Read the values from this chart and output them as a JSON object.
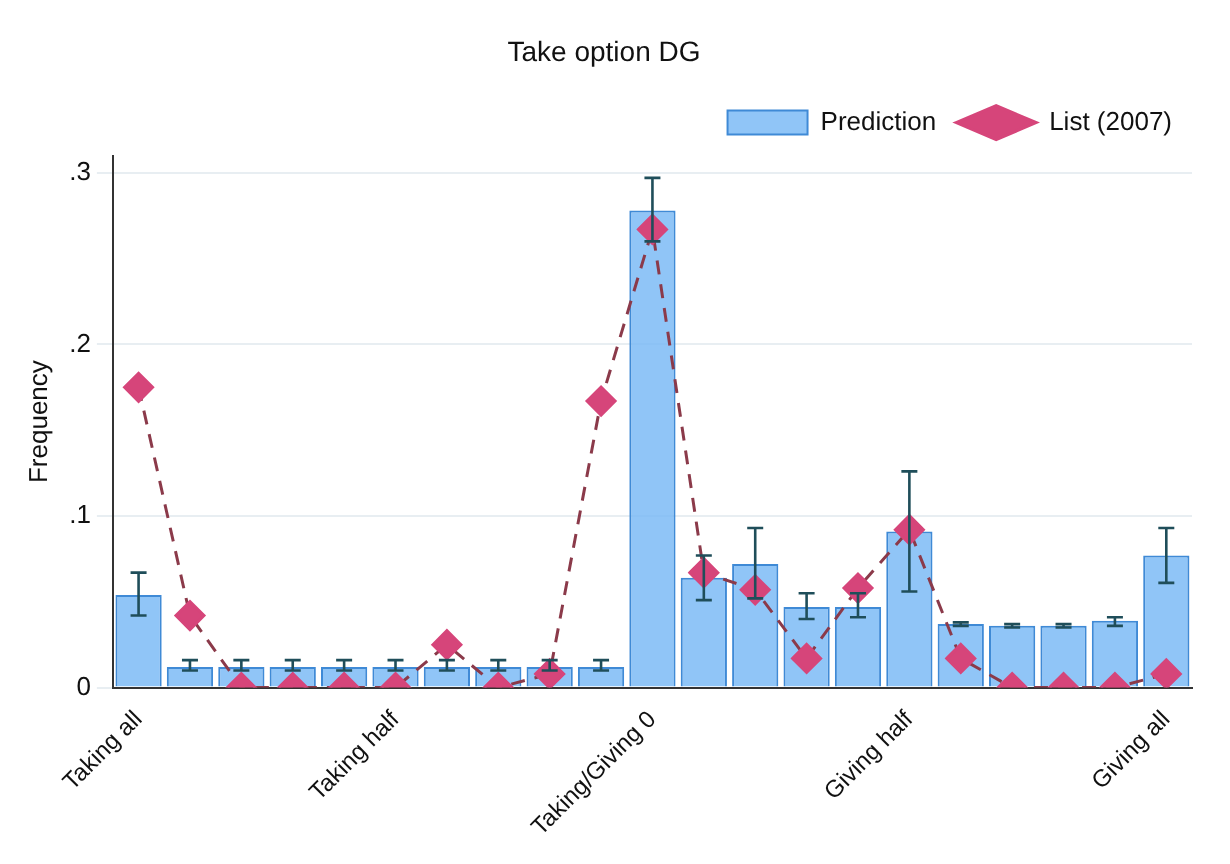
{
  "chart_data": {
    "type": "bar",
    "title": "Take option DG",
    "ylabel": "Frequency",
    "categories": [
      "Taking all",
      null,
      null,
      null,
      null,
      "Taking half",
      null,
      null,
      null,
      null,
      "Taking/Giving 0",
      null,
      null,
      null,
      null,
      "Giving half",
      null,
      null,
      null,
      null,
      "Giving all"
    ],
    "series": [
      {
        "name": "Prediction",
        "color": "#74b6f5",
        "values": [
          0.054,
          0.012,
          0.012,
          0.012,
          0.012,
          0.012,
          0.012,
          0.012,
          0.012,
          0.012,
          0.278,
          0.064,
          0.072,
          0.047,
          0.047,
          0.091,
          0.037,
          0.036,
          0.036,
          0.039,
          0.077
        ],
        "errors": [
          [
            0.042,
            0.067
          ],
          [
            0.01,
            0.016
          ],
          [
            0.01,
            0.016
          ],
          [
            0.01,
            0.016
          ],
          [
            0.01,
            0.016
          ],
          [
            0.01,
            0.016
          ],
          [
            0.01,
            0.016
          ],
          [
            0.01,
            0.016
          ],
          [
            0.01,
            0.016
          ],
          [
            0.01,
            0.016
          ],
          [
            0.26,
            0.297
          ],
          [
            0.051,
            0.077
          ],
          [
            0.052,
            0.093
          ],
          [
            0.04,
            0.055
          ],
          [
            0.041,
            0.055
          ],
          [
            0.056,
            0.126
          ],
          [
            0.036,
            0.038
          ],
          [
            0.035,
            0.037
          ],
          [
            0.035,
            0.037
          ],
          [
            0.036,
            0.041
          ],
          [
            0.061,
            0.093
          ]
        ]
      },
      {
        "name": "List (2007)",
        "type": "line",
        "color": "#d6457a",
        "line_style": "dashed",
        "marker": "diamond",
        "values": [
          0.175,
          0.042,
          0,
          0,
          0,
          0,
          0.025,
          0,
          0.008,
          0.167,
          0.267,
          0.067,
          0.057,
          0.017,
          0.058,
          0.092,
          0.017,
          0,
          0,
          0,
          0.008
        ]
      }
    ],
    "ylim": [
      0,
      0.31
    ],
    "yticks": [
      {
        "value": 0,
        "label": "0"
      },
      {
        "value": 0.1,
        "label": ".1"
      },
      {
        "value": 0.2,
        "label": ".2"
      },
      {
        "value": 0.3,
        "label": ".3"
      }
    ],
    "grid": "y",
    "legend": "top right"
  }
}
